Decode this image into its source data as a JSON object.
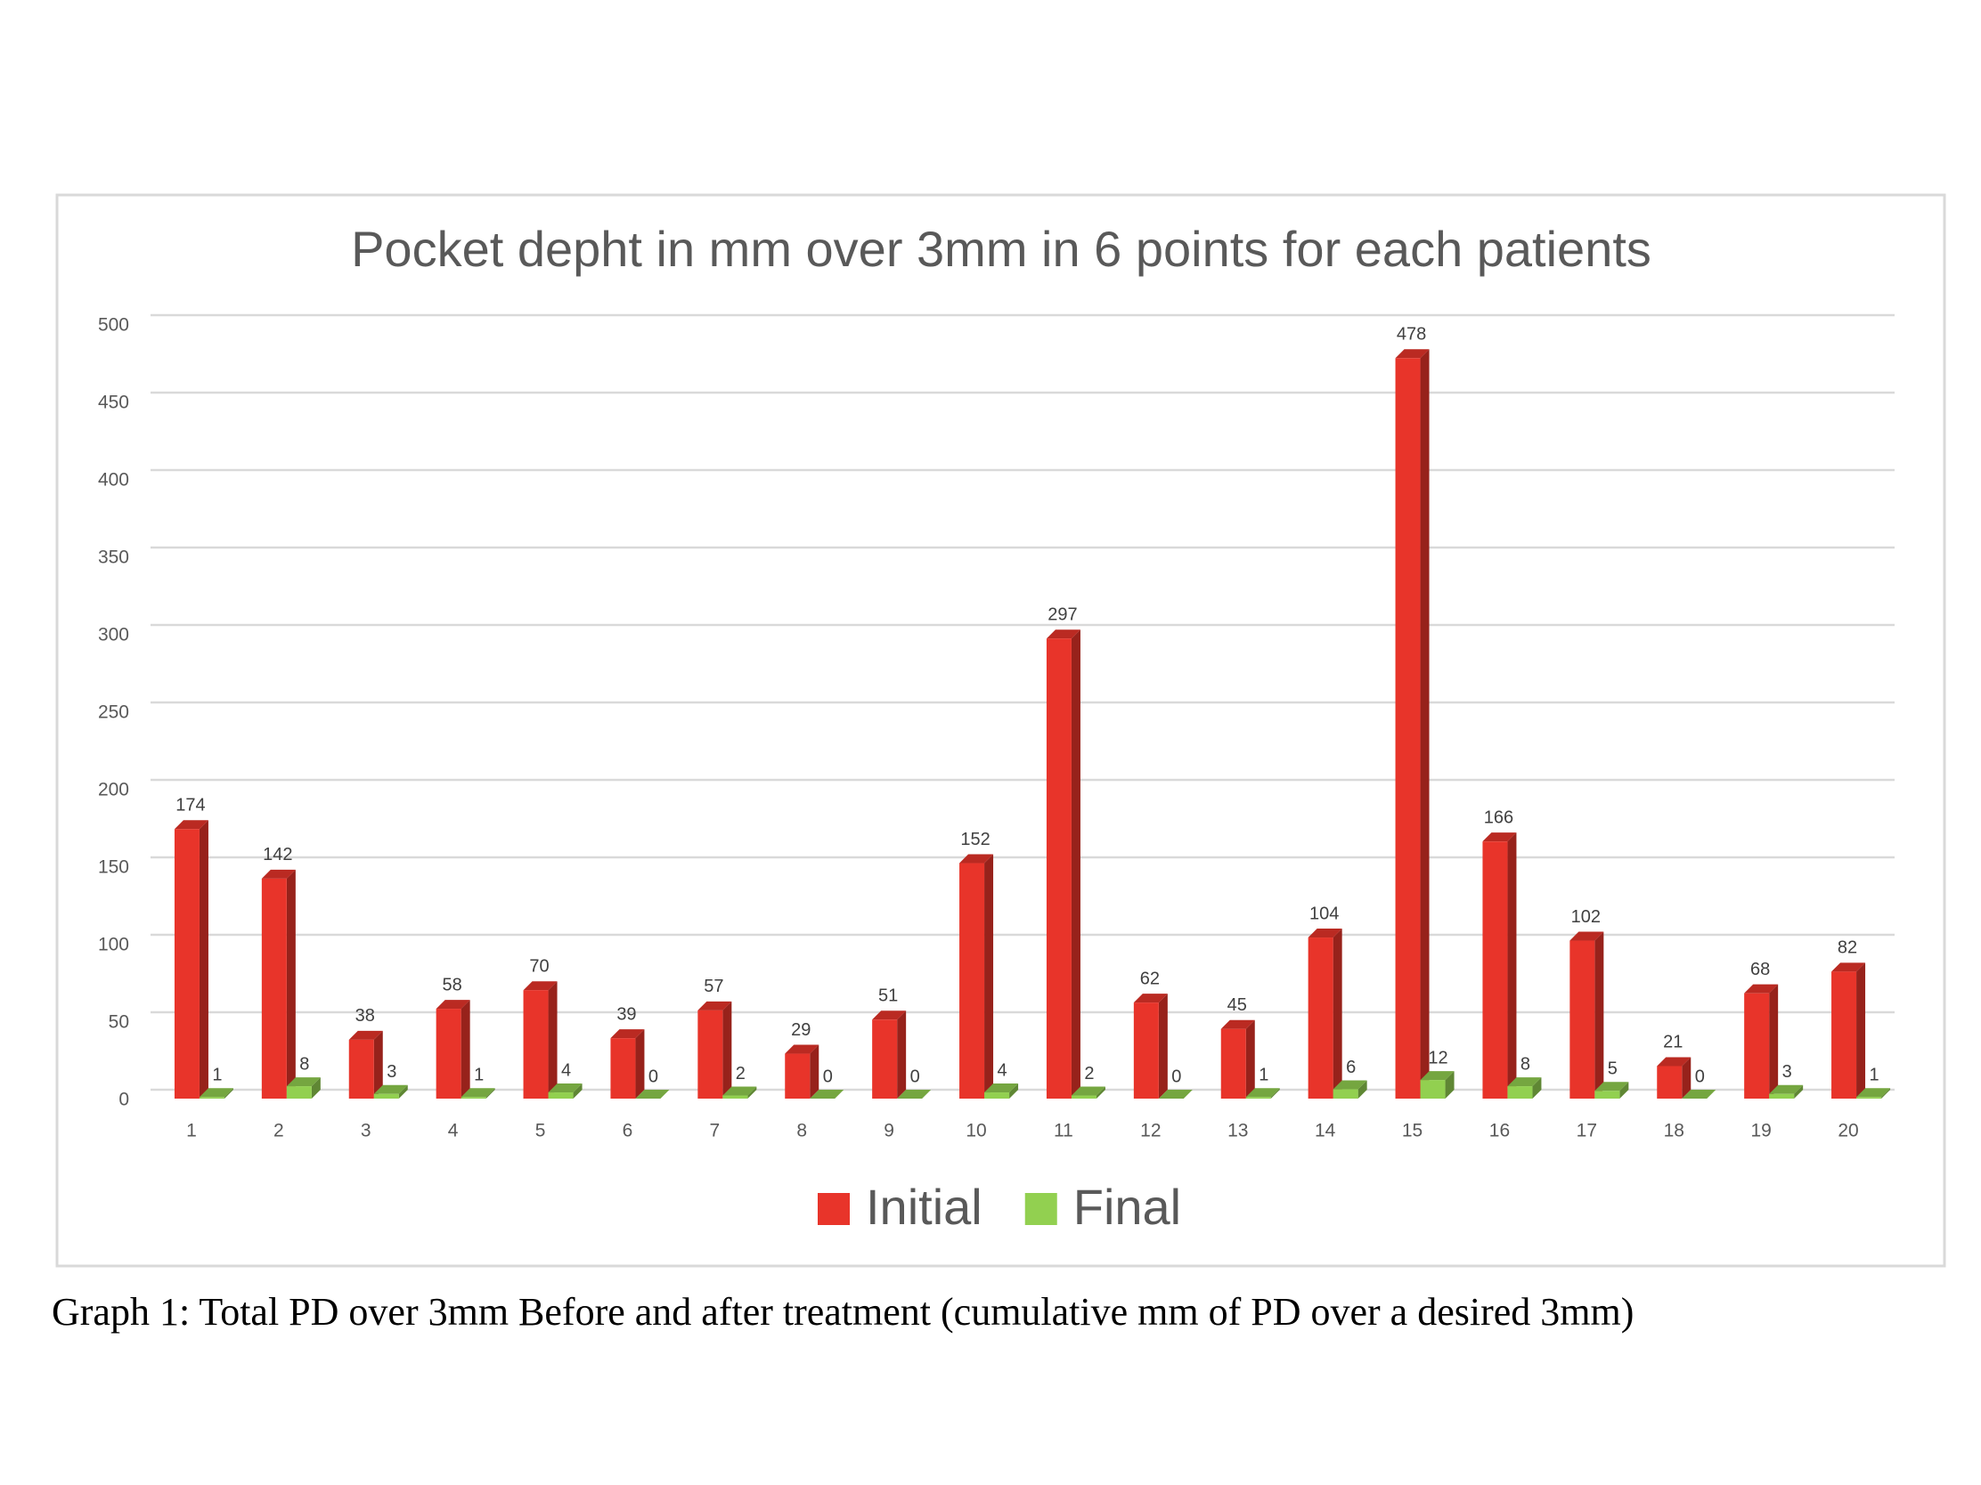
{
  "chart_data": {
    "type": "bar",
    "title": "Pocket depht in mm over 3mm in 6 points for each patients",
    "categories": [
      "1",
      "2",
      "3",
      "4",
      "5",
      "6",
      "7",
      "8",
      "9",
      "10",
      "11",
      "12",
      "13",
      "14",
      "15",
      "16",
      "17",
      "18",
      "19",
      "20"
    ],
    "series": [
      {
        "name": "Initial",
        "color": "#e8342a",
        "values": [
          174,
          142,
          38,
          58,
          70,
          39,
          57,
          29,
          51,
          152,
          297,
          62,
          45,
          104,
          478,
          166,
          102,
          21,
          68,
          82
        ]
      },
      {
        "name": "Final",
        "color": "#92d050",
        "values": [
          1,
          8,
          3,
          1,
          4,
          0,
          2,
          0,
          0,
          4,
          2,
          0,
          1,
          6,
          12,
          8,
          5,
          0,
          3,
          1
        ]
      }
    ],
    "ylim": [
      0,
      500
    ],
    "yticks": [
      0,
      50,
      100,
      150,
      200,
      250,
      300,
      350,
      400,
      450,
      500
    ],
    "grid": true,
    "legend": "bottom"
  },
  "caption": "Graph 1: Total PD over 3mm Before and after treatment (cumulative mm of PD over a desired 3mm)"
}
